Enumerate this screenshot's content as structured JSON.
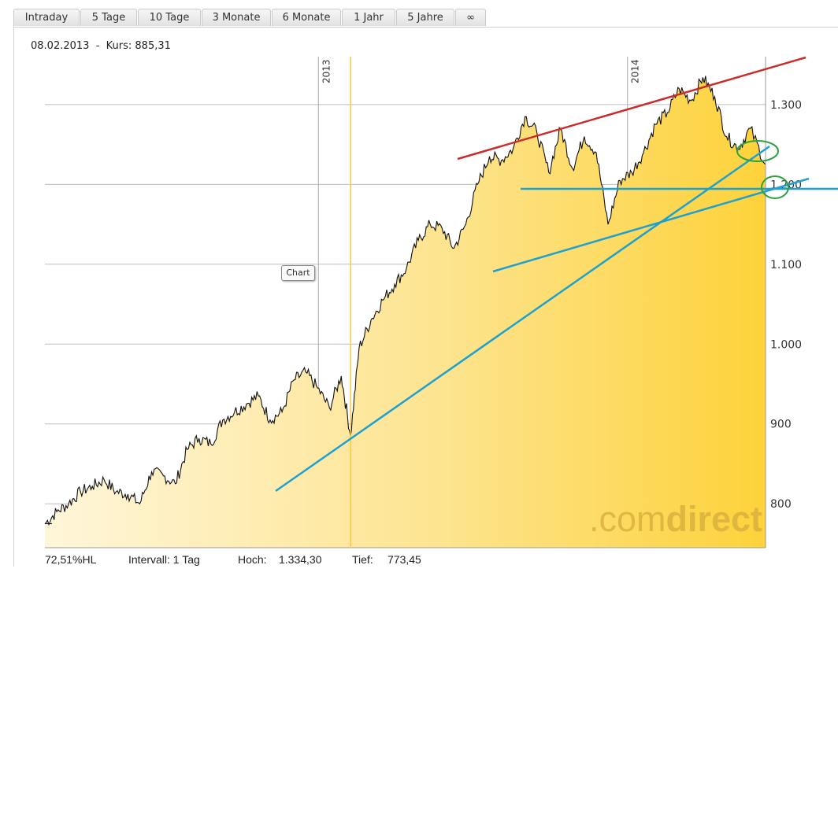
{
  "tabs": [
    {
      "label": "Intraday"
    },
    {
      "label": "5 Tage"
    },
    {
      "label": "10 Tage"
    },
    {
      "label": "3 Monate"
    },
    {
      "label": "6 Monate"
    },
    {
      "label": "1 Jahr"
    },
    {
      "label": "5 Jahre"
    },
    {
      "label": "∞"
    }
  ],
  "header": {
    "info": "08.02.2013  -  Kurs: 885,31"
  },
  "tooltip": {
    "label": "Chart"
  },
  "watermark": {
    "prefix": ".com",
    "suffix": "direct"
  },
  "footer": {
    "hl": "72,51%HL",
    "intervall": "Intervall: 1 Tag",
    "hoch_label": "Hoch:",
    "hoch_value": "1.334,30",
    "tief_label": "Tief:",
    "tief_value": "773,45"
  },
  "chart_data": {
    "type": "area",
    "y_range": [
      745,
      1360
    ],
    "x_range": [
      "2012-02-13",
      "2014-06-13"
    ],
    "y_ticks": [
      {
        "value": 800,
        "label": "800"
      },
      {
        "value": 900,
        "label": "900"
      },
      {
        "value": 1000,
        "label": "1.000"
      },
      {
        "value": 1100,
        "label": "1.100"
      },
      {
        "value": 1200,
        "label": "1.200"
      },
      {
        "value": 1300,
        "label": "1.300"
      }
    ],
    "x_ticks": [
      {
        "date": "2013-01-01",
        "label": "2013"
      },
      {
        "date": "2014-01-01",
        "label": "2014"
      }
    ],
    "marker": {
      "date": "2013-02-08",
      "value": 885.31
    },
    "series": [
      {
        "points": [
          [
            "2012-02-13",
            775
          ],
          [
            "2012-02-27",
            790
          ],
          [
            "2012-03-12",
            800
          ],
          [
            "2012-03-26",
            815
          ],
          [
            "2012-04-09",
            822
          ],
          [
            "2012-04-23",
            830
          ],
          [
            "2012-05-07",
            815
          ],
          [
            "2012-05-21",
            812
          ],
          [
            "2012-06-04",
            800
          ],
          [
            "2012-06-18",
            840
          ],
          [
            "2012-07-02",
            835
          ],
          [
            "2012-07-16",
            825
          ],
          [
            "2012-07-30",
            868
          ],
          [
            "2012-08-13",
            882
          ],
          [
            "2012-08-27",
            875
          ],
          [
            "2012-09-10",
            905
          ],
          [
            "2012-09-24",
            915
          ],
          [
            "2012-10-08",
            925
          ],
          [
            "2012-10-22",
            935
          ],
          [
            "2012-11-05",
            905
          ],
          [
            "2012-11-19",
            915
          ],
          [
            "2012-12-03",
            955
          ],
          [
            "2012-12-17",
            965
          ],
          [
            "2012-12-31",
            945
          ],
          [
            "2013-01-14",
            920
          ],
          [
            "2013-01-28",
            960
          ],
          [
            "2013-02-08",
            885
          ],
          [
            "2013-02-18",
            995
          ],
          [
            "2013-03-04",
            1030
          ],
          [
            "2013-03-18",
            1055
          ],
          [
            "2013-04-01",
            1075
          ],
          [
            "2013-04-15",
            1095
          ],
          [
            "2013-04-29",
            1130
          ],
          [
            "2013-05-13",
            1150
          ],
          [
            "2013-05-27",
            1145
          ],
          [
            "2013-06-10",
            1120
          ],
          [
            "2013-06-24",
            1150
          ],
          [
            "2013-07-08",
            1200
          ],
          [
            "2013-07-22",
            1235
          ],
          [
            "2013-08-05",
            1230
          ],
          [
            "2013-08-19",
            1245
          ],
          [
            "2013-09-02",
            1285
          ],
          [
            "2013-09-16",
            1265
          ],
          [
            "2013-09-30",
            1215
          ],
          [
            "2013-10-14",
            1270
          ],
          [
            "2013-10-28",
            1220
          ],
          [
            "2013-11-11",
            1260
          ],
          [
            "2013-11-25",
            1240
          ],
          [
            "2013-12-09",
            1150
          ],
          [
            "2013-12-23",
            1205
          ],
          [
            "2014-01-06",
            1215
          ],
          [
            "2014-01-20",
            1240
          ],
          [
            "2014-02-03",
            1275
          ],
          [
            "2014-02-17",
            1290
          ],
          [
            "2014-03-03",
            1320
          ],
          [
            "2014-03-17",
            1305
          ],
          [
            "2014-03-31",
            1334
          ],
          [
            "2014-04-14",
            1310
          ],
          [
            "2014-04-28",
            1260
          ],
          [
            "2014-05-12",
            1245
          ],
          [
            "2014-05-26",
            1270
          ],
          [
            "2014-06-13",
            1225
          ]
        ]
      }
    ]
  }
}
